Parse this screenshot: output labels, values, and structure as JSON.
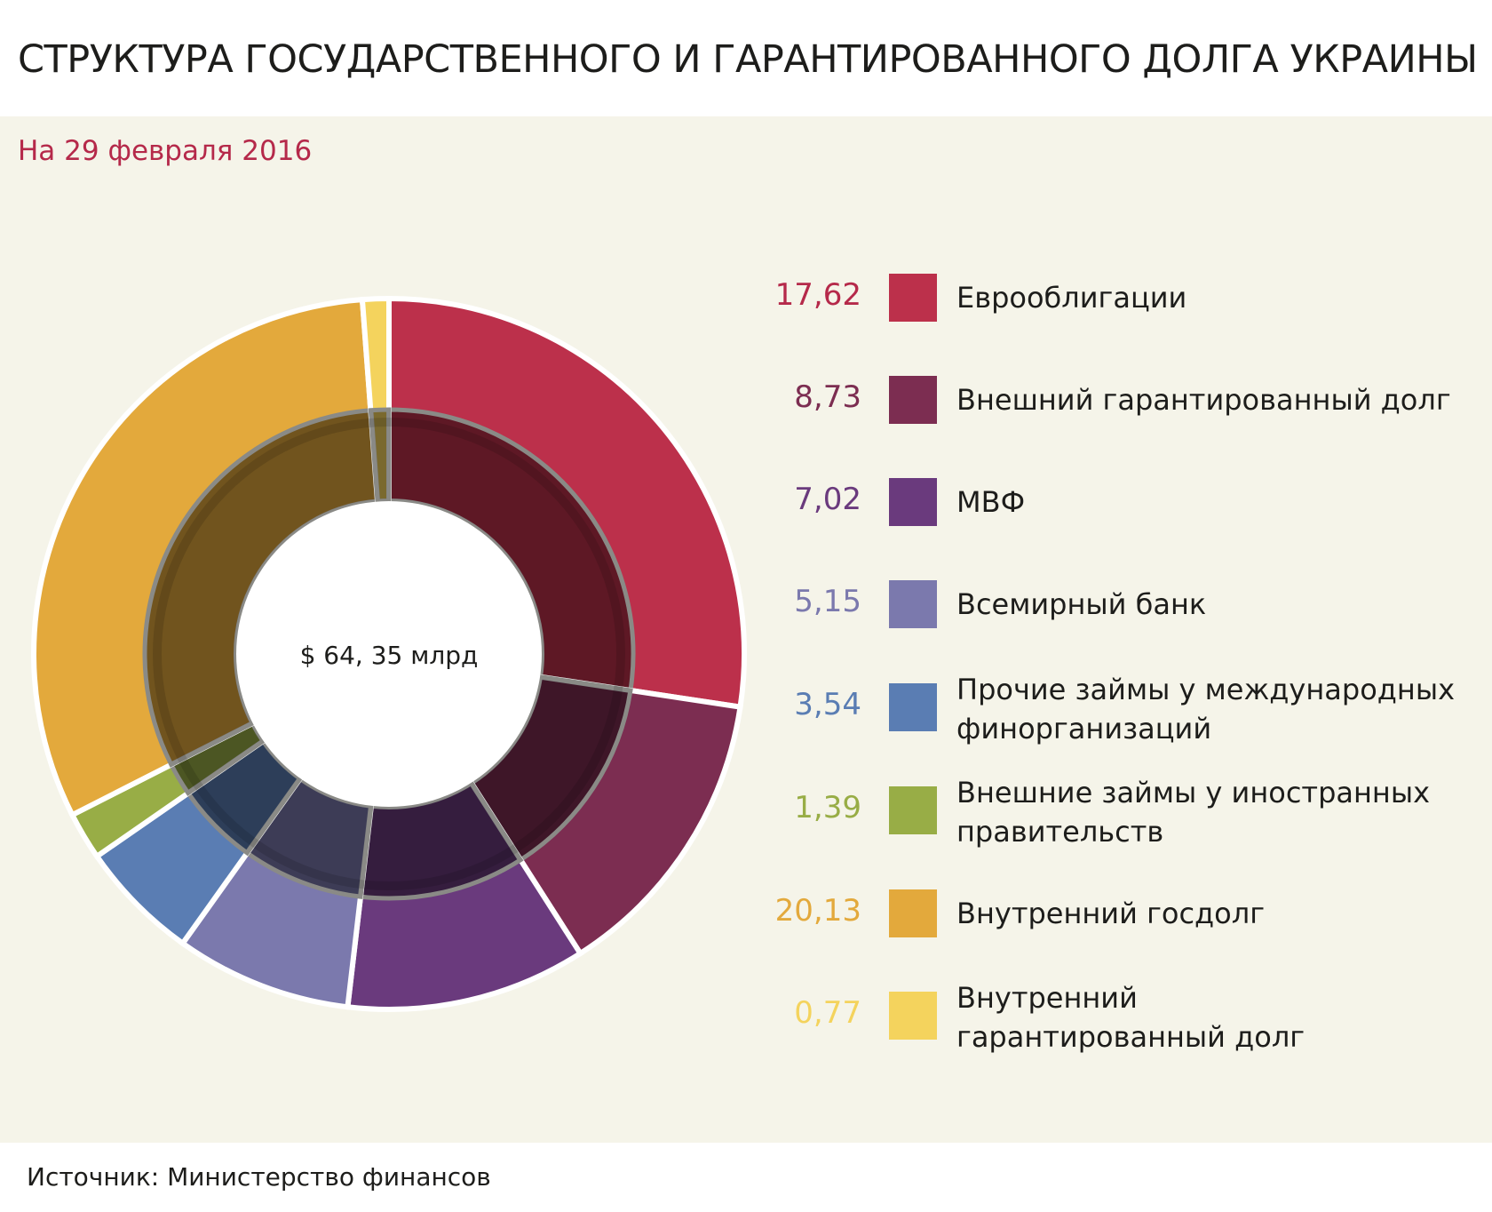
{
  "title": "СТРУКТУРА ГОСУДАРСТВЕННОГО И ГАРАНТИРОВАННОГО  ДОЛГА УКРАИНЫ",
  "subtitle": "На 29 февраля 2016",
  "source": "Источник: Министерство финансов",
  "colors": {
    "background": "#f5f4e9",
    "subtitle": "#b5294a"
  },
  "chart_data": {
    "type": "pie",
    "variant": "donut",
    "center_label": "$ 64, 35 млрд",
    "legend_position": "right",
    "unit": "млрд $",
    "slices": [
      {
        "value": 17.62,
        "value_label": "17,62",
        "label": "Еврооблигации",
        "label_lines": [
          "Еврооблигации"
        ],
        "color": "#bc304b",
        "value_color": "#b5294a"
      },
      {
        "value": 8.73,
        "value_label": "8,73",
        "label": "Внешний гарантированный долг",
        "label_lines": [
          "Внешний гарантированный долг"
        ],
        "color": "#7c2d51",
        "value_color": "#7c2d51"
      },
      {
        "value": 7.02,
        "value_label": "7,02",
        "label": "МВФ",
        "label_lines": [
          "МВФ"
        ],
        "color": "#6a3a7d",
        "value_color": "#6a3a7d"
      },
      {
        "value": 5.15,
        "value_label": "5,15",
        "label": "Всемирный банк",
        "label_lines": [
          "Всемирный банк"
        ],
        "color": "#7b79ad",
        "value_color": "#7b79ad"
      },
      {
        "value": 3.54,
        "value_label": "3,54",
        "label": "Прочие займы у международных финорганизаций",
        "label_lines": [
          "Прочие займы у международных",
          "финорганизаций"
        ],
        "color": "#5a7db3",
        "value_color": "#5a7db3"
      },
      {
        "value": 1.39,
        "value_label": "1,39",
        "label": "Внешние займы у иностранных правительств",
        "label_lines": [
          "Внешние займы у иностранных",
          "правительств"
        ],
        "color": "#98ad46",
        "value_color": "#98ad46"
      },
      {
        "value": 20.13,
        "value_label": "20,13",
        "label": "Внутренний госдолг",
        "label_lines": [
          "Внутренний госдолг"
        ],
        "color": "#e3a93c",
        "value_color": "#e3a93c"
      },
      {
        "value": 0.77,
        "value_label": "0,77",
        "label": "Внутренний гарантированный долг",
        "label_lines": [
          "Внутренний",
          "гарантированный долг"
        ],
        "color": "#f4d35d",
        "value_color": "#f4d35d"
      }
    ]
  }
}
